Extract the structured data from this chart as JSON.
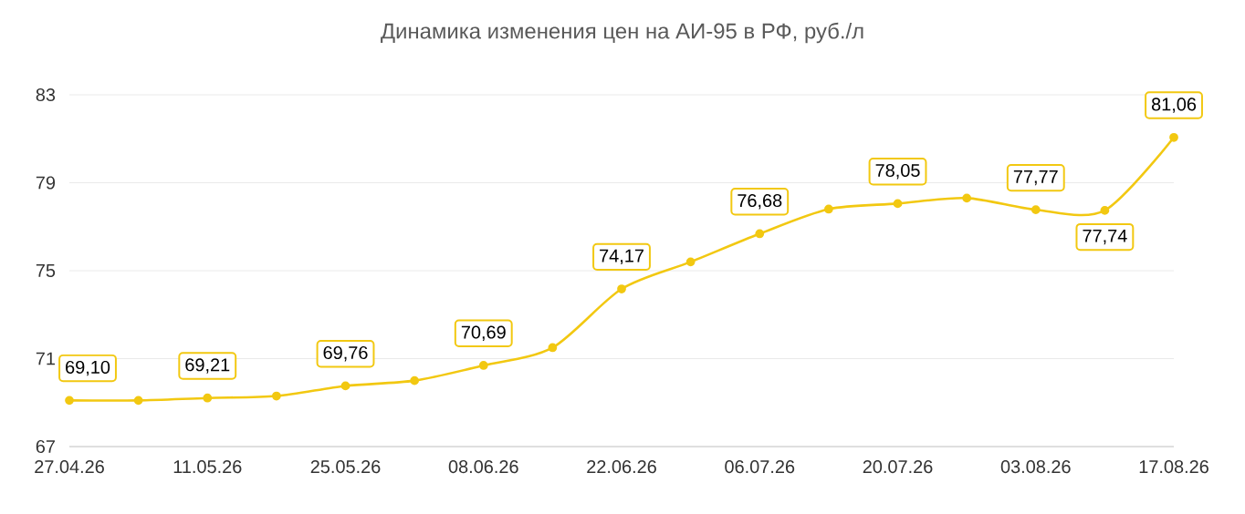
{
  "chart_data": {
    "type": "line",
    "title": "Динамика изменения цен на АИ-95 в РФ, руб./л",
    "x": [
      "2026-04-27",
      "2026-05-04",
      "2026-05-11",
      "2026-05-18",
      "2026-05-25",
      "2026-06-01",
      "2026-06-08",
      "2026-06-15",
      "2026-06-22",
      "2026-06-29",
      "2026-07-06",
      "2026-07-13",
      "2026-07-20",
      "2026-07-27",
      "2026-08-03",
      "2026-08-10",
      "2026-08-17"
    ],
    "values": [
      69.1,
      69.1,
      69.21,
      69.3,
      69.76,
      70.0,
      70.69,
      71.5,
      74.17,
      75.4,
      76.68,
      77.8,
      78.05,
      78.3,
      77.77,
      77.74,
      81.06
    ],
    "value_labels": [
      "69,10",
      null,
      "69,21",
      null,
      "69,76",
      null,
      "70,69",
      null,
      "74,17",
      null,
      "76,68",
      null,
      "78,05",
      null,
      "77,77",
      "77,74",
      "81,06"
    ],
    "color": "#f2c811",
    "marker": "circle",
    "line_style": "solid",
    "grid": "y",
    "xlim": [
      "2026-04-27",
      "2026-08-17"
    ],
    "xticks": [
      {
        "value": "2026-04-27",
        "label": "27.04.26"
      },
      {
        "value": "2026-05-11",
        "label": "11.05.26"
      },
      {
        "value": "2026-05-25",
        "label": "25.05.26"
      },
      {
        "value": "2026-06-08",
        "label": "08.06.26"
      },
      {
        "value": "2026-06-22",
        "label": "22.06.26"
      },
      {
        "value": "2026-07-06",
        "label": "06.07.26"
      },
      {
        "value": "2026-07-20",
        "label": "20.07.26"
      },
      {
        "value": "2026-08-03",
        "label": "03.08.26"
      },
      {
        "value": "2026-08-17",
        "label": "17.08.26"
      }
    ],
    "ylim": [
      67,
      83
    ],
    "yticks": [
      67,
      71,
      75,
      79,
      83
    ]
  }
}
